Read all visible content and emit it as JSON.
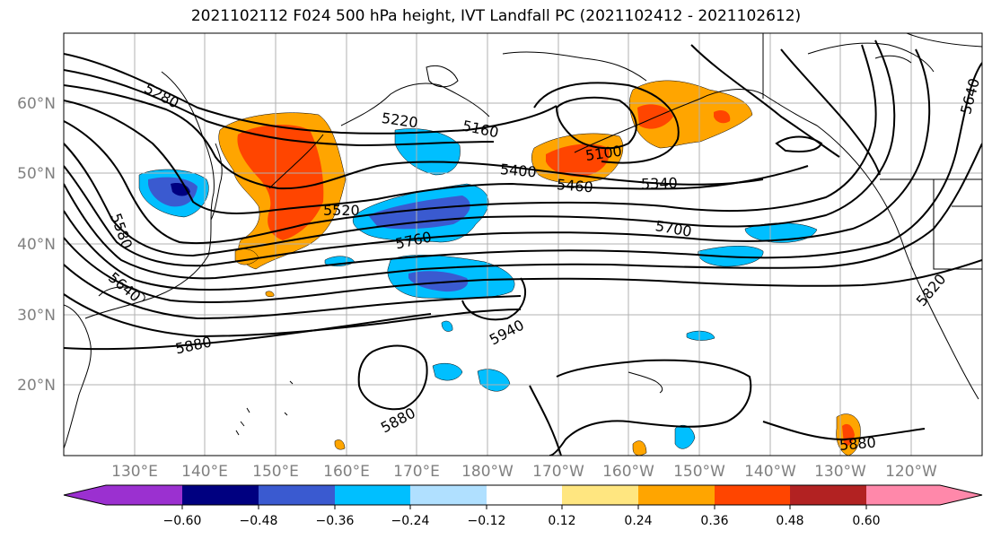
{
  "title": "2021102112 F024 500 hPa height, IVT Landfall PC (2021102412 - 2021102612)",
  "map": {
    "lat_labels": [
      "60°N",
      "50°N",
      "40°N",
      "30°N",
      "20°N"
    ],
    "lon_labels": [
      "130°E",
      "140°E",
      "150°E",
      "160°E",
      "170°E",
      "180°W",
      "170°W",
      "160°W",
      "150°W",
      "140°W",
      "130°W",
      "120°W"
    ],
    "contour_labels": [
      "5280",
      "5220",
      "5160",
      "5100",
      "5400",
      "5460",
      "5340",
      "5520",
      "5760",
      "5700",
      "5580",
      "5640",
      "5820",
      "5880",
      "5940",
      "5880",
      "5880",
      "5640"
    ]
  },
  "colorbar": {
    "ticks": [
      "−0.60",
      "−0.48",
      "−0.36",
      "−0.24",
      "−0.12",
      "0.12",
      "0.24",
      "0.36",
      "0.48",
      "0.60"
    ],
    "colors": [
      "#9b30d0",
      "#000080",
      "#3a5ad0",
      "#00bfff",
      "#b0e0ff",
      "#ffffff",
      "#ffe680",
      "#ffa500",
      "#ff4500",
      "#b22222",
      "#ff88aa"
    ]
  }
}
